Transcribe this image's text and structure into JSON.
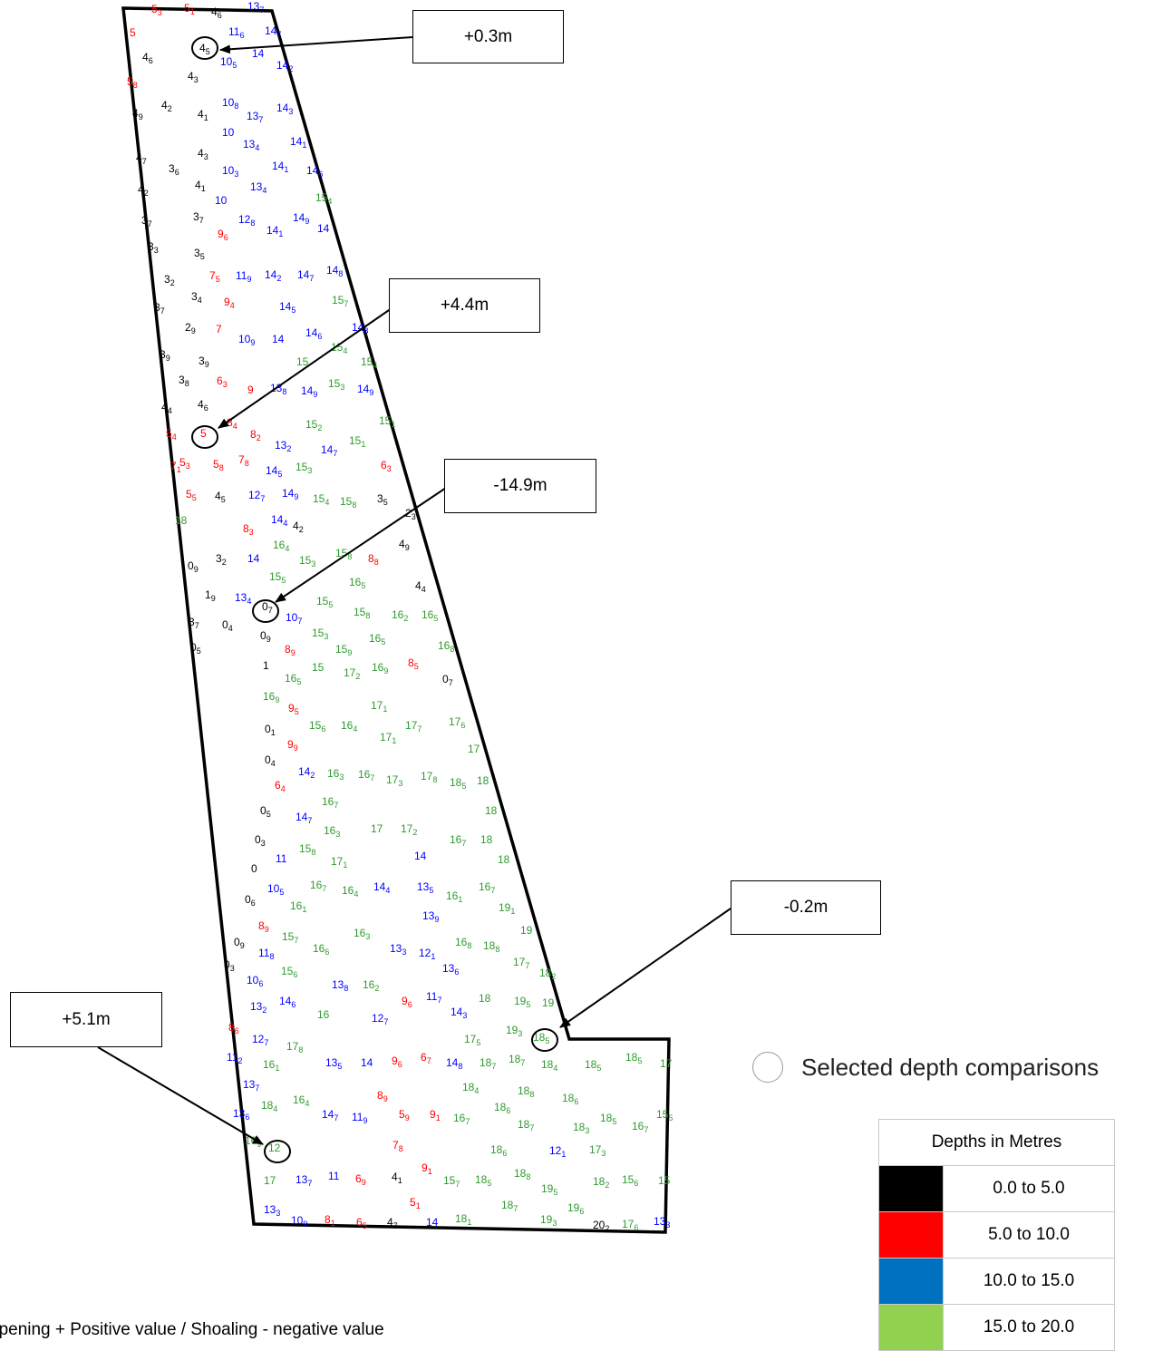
{
  "map": {
    "callouts": [
      "+0.3m",
      "+4.4m",
      "-14.9m",
      "-0.2m",
      "+5.1m"
    ],
    "selected_legend_label": "Selected depth comparisons",
    "footnote": "epening + Positive value / Shoaling - negative value"
  },
  "legend": {
    "title": "Depths in Metres",
    "ranges": [
      {
        "label": "0.0 to 5.0",
        "color": "#000000"
      },
      {
        "label": "5.0 to 10.0",
        "color": "#ff0000"
      },
      {
        "label": "10.0 to 15.0",
        "color": "#0070c0"
      },
      {
        "label": "15.0 to 20.0",
        "color": "#92d050"
      }
    ]
  },
  "soundings": [
    {
      "v": "5",
      "s": "3",
      "c": "r"
    },
    {
      "v": "5",
      "s": "1",
      "c": "r"
    },
    {
      "v": "4",
      "s": "6",
      "c": "k"
    },
    {
      "v": "13",
      "s": "7",
      "c": "b"
    },
    {
      "v": "5",
      "s": "",
      "c": "r"
    },
    {
      "v": "11",
      "s": "6",
      "c": "b"
    },
    {
      "v": "14",
      "s": "7",
      "c": "b"
    },
    {
      "v": "4",
      "s": "5",
      "c": "k"
    },
    {
      "v": "10",
      "s": "5",
      "c": "b"
    },
    {
      "v": "14",
      "s": "",
      "c": "b"
    },
    {
      "v": "14",
      "s": "2",
      "c": "b"
    },
    {
      "v": "4",
      "s": "6",
      "c": "k"
    },
    {
      "v": "4",
      "s": "3",
      "c": "k"
    },
    {
      "v": "5",
      "s": "8",
      "c": "r"
    },
    {
      "v": "4",
      "s": "2",
      "c": "k"
    },
    {
      "v": "4",
      "s": "1",
      "c": "k"
    },
    {
      "v": "10",
      "s": "8",
      "c": "b"
    },
    {
      "v": "13",
      "s": "7",
      "c": "b"
    },
    {
      "v": "14",
      "s": "3",
      "c": "b"
    },
    {
      "v": "4",
      "s": "9",
      "c": "k"
    },
    {
      "v": "10",
      "s": "",
      "c": "b"
    },
    {
      "v": "13",
      "s": "4",
      "c": "b"
    },
    {
      "v": "14",
      "s": "1",
      "c": "b"
    },
    {
      "v": "4",
      "s": "3",
      "c": "k"
    },
    {
      "v": "4",
      "s": "7",
      "c": "k"
    },
    {
      "v": "3",
      "s": "6",
      "c": "k"
    },
    {
      "v": "10",
      "s": "3",
      "c": "b"
    },
    {
      "v": "14",
      "s": "1",
      "c": "b"
    },
    {
      "v": "14",
      "s": "6",
      "c": "b"
    },
    {
      "v": "4",
      "s": "1",
      "c": "k"
    },
    {
      "v": "13",
      "s": "4",
      "c": "b"
    },
    {
      "v": "4",
      "s": "2",
      "c": "k"
    },
    {
      "v": "10",
      "s": "",
      "c": "b"
    },
    {
      "v": "15",
      "s": "4",
      "c": "g"
    },
    {
      "v": "3",
      "s": "7",
      "c": "k"
    },
    {
      "v": "12",
      "s": "8",
      "c": "b"
    },
    {
      "v": "14",
      "s": "9",
      "c": "b"
    },
    {
      "v": "14",
      "s": "1",
      "c": "b"
    },
    {
      "v": "14",
      "s": "",
      "c": "b"
    },
    {
      "v": "3",
      "s": "7",
      "c": "k"
    },
    {
      "v": "9",
      "s": "6",
      "c": "r"
    },
    {
      "v": "3",
      "s": "3",
      "c": "k"
    },
    {
      "v": "3",
      "s": "5",
      "c": "k"
    },
    {
      "v": "3",
      "s": "2",
      "c": "k"
    },
    {
      "v": "7",
      "s": "5",
      "c": "r"
    },
    {
      "v": "11",
      "s": "9",
      "c": "b"
    },
    {
      "v": "14",
      "s": "2",
      "c": "b"
    },
    {
      "v": "14",
      "s": "7",
      "c": "b"
    },
    {
      "v": "14",
      "s": "8",
      "c": "b"
    },
    {
      "v": "3",
      "s": "4",
      "c": "k"
    },
    {
      "v": "9",
      "s": "4",
      "c": "r"
    },
    {
      "v": "14",
      "s": "5",
      "c": "b"
    },
    {
      "v": "15",
      "s": "7",
      "c": "g"
    },
    {
      "v": "3",
      "s": "7",
      "c": "k"
    },
    {
      "v": "2",
      "s": "9",
      "c": "k"
    },
    {
      "v": "7",
      "s": "",
      "c": "r"
    },
    {
      "v": "10",
      "s": "9",
      "c": "b"
    },
    {
      "v": "14",
      "s": "",
      "c": "b"
    },
    {
      "v": "14",
      "s": "6",
      "c": "b"
    },
    {
      "v": "14",
      "s": "8",
      "c": "b"
    },
    {
      "v": "3",
      "s": "9",
      "c": "k"
    },
    {
      "v": "3",
      "s": "9",
      "c": "k"
    },
    {
      "v": "15",
      "s": "",
      "c": "g"
    },
    {
      "v": "15",
      "s": "4",
      "c": "g"
    },
    {
      "v": "15",
      "s": "4",
      "c": "g"
    },
    {
      "v": "3",
      "s": "8",
      "c": "k"
    },
    {
      "v": "6",
      "s": "3",
      "c": "r"
    },
    {
      "v": "9",
      "s": "",
      "c": "r"
    },
    {
      "v": "13",
      "s": "8",
      "c": "b"
    },
    {
      "v": "14",
      "s": "9",
      "c": "b"
    },
    {
      "v": "15",
      "s": "3",
      "c": "g"
    },
    {
      "v": "14",
      "s": "9",
      "c": "b"
    },
    {
      "v": "4",
      "s": "6",
      "c": "k"
    },
    {
      "v": "4",
      "s": "4",
      "c": "k"
    },
    {
      "v": "5",
      "s": "",
      "c": "r"
    },
    {
      "v": "8",
      "s": "4",
      "c": "r"
    },
    {
      "v": "15",
      "s": "2",
      "c": "g"
    },
    {
      "v": "15",
      "s": "1",
      "c": "g"
    },
    {
      "v": "5",
      "s": "4",
      "c": "r"
    },
    {
      "v": "8",
      "s": "2",
      "c": "r"
    },
    {
      "v": "13",
      "s": "2",
      "c": "b"
    },
    {
      "v": "14",
      "s": "7",
      "c": "b"
    },
    {
      "v": "15",
      "s": "1",
      "c": "g"
    },
    {
      "v": "5",
      "s": "3",
      "c": "r"
    },
    {
      "v": "5",
      "s": "8",
      "c": "r"
    },
    {
      "v": "7",
      "s": "8",
      "c": "r"
    },
    {
      "v": "14",
      "s": "5",
      "c": "b"
    },
    {
      "v": "15",
      "s": "3",
      "c": "g"
    },
    {
      "v": "6",
      "s": "3",
      "c": "r"
    },
    {
      "v": "7",
      "s": "1",
      "c": "r"
    },
    {
      "v": "5",
      "s": "5",
      "c": "r"
    },
    {
      "v": "4",
      "s": "5",
      "c": "k"
    },
    {
      "v": "12",
      "s": "7",
      "c": "b"
    },
    {
      "v": "14",
      "s": "9",
      "c": "b"
    },
    {
      "v": "15",
      "s": "4",
      "c": "g"
    },
    {
      "v": "15",
      "s": "8",
      "c": "g"
    },
    {
      "v": "3",
      "s": "5",
      "c": "k"
    },
    {
      "v": "14",
      "s": "4",
      "c": "b"
    },
    {
      "v": "4",
      "s": "2",
      "c": "k"
    },
    {
      "v": "8",
      "s": "3",
      "c": "r"
    },
    {
      "v": "18",
      "s": "",
      "c": "g"
    },
    {
      "v": "2",
      "s": "3",
      "c": "k"
    },
    {
      "v": "16",
      "s": "4",
      "c": "g"
    },
    {
      "v": "4",
      "s": "9",
      "c": "k"
    },
    {
      "v": "3",
      "s": "2",
      "c": "k"
    },
    {
      "v": "14",
      "s": "",
      "c": "b"
    },
    {
      "v": "15",
      "s": "3",
      "c": "g"
    },
    {
      "v": "15",
      "s": "8",
      "c": "g"
    },
    {
      "v": "8",
      "s": "8",
      "c": "r"
    },
    {
      "v": "0",
      "s": "9",
      "c": "k"
    },
    {
      "v": "15",
      "s": "5",
      "c": "g"
    },
    {
      "v": "16",
      "s": "5",
      "c": "g"
    },
    {
      "v": "4",
      "s": "4",
      "c": "k"
    },
    {
      "v": "1",
      "s": "9",
      "c": "k"
    },
    {
      "v": "13",
      "s": "4",
      "c": "b"
    },
    {
      "v": "0",
      "s": "7",
      "c": "k"
    },
    {
      "v": "15",
      "s": "5",
      "c": "g"
    },
    {
      "v": "15",
      "s": "8",
      "c": "g"
    },
    {
      "v": "16",
      "s": "2",
      "c": "g"
    },
    {
      "v": "16",
      "s": "5",
      "c": "g"
    },
    {
      "v": "3",
      "s": "7",
      "c": "k"
    },
    {
      "v": "0",
      "s": "4",
      "c": "k"
    },
    {
      "v": "10",
      "s": "7",
      "c": "b"
    },
    {
      "v": "0",
      "s": "9",
      "c": "k"
    },
    {
      "v": "15",
      "s": "3",
      "c": "g"
    },
    {
      "v": "16",
      "s": "5",
      "c": "g"
    },
    {
      "v": "0",
      "s": "5",
      "c": "k"
    },
    {
      "v": "8",
      "s": "9",
      "c": "r"
    },
    {
      "v": "15",
      "s": "9",
      "c": "g"
    },
    {
      "v": "16",
      "s": "8",
      "c": "g"
    },
    {
      "v": "1",
      "s": "",
      "c": "k"
    },
    {
      "v": "15",
      "s": "",
      "c": "g"
    },
    {
      "v": "17",
      "s": "2",
      "c": "g"
    },
    {
      "v": "16",
      "s": "9",
      "c": "g"
    },
    {
      "v": "8",
      "s": "5",
      "c": "r"
    },
    {
      "v": "16",
      "s": "5",
      "c": "g"
    },
    {
      "v": "17",
      "s": "1",
      "c": "g"
    },
    {
      "v": "0",
      "s": "7",
      "c": "k"
    },
    {
      "v": "16",
      "s": "9",
      "c": "g"
    },
    {
      "v": "9",
      "s": "5",
      "c": "r"
    },
    {
      "v": "0",
      "s": "1",
      "c": "k"
    },
    {
      "v": "15",
      "s": "6",
      "c": "g"
    },
    {
      "v": "16",
      "s": "4",
      "c": "g"
    },
    {
      "v": "17",
      "s": "7",
      "c": "g"
    },
    {
      "v": "17",
      "s": "6",
      "c": "g"
    },
    {
      "v": "17",
      "s": "1",
      "c": "g"
    },
    {
      "v": "9",
      "s": "9",
      "c": "r"
    },
    {
      "v": "17",
      "s": "",
      "c": "g"
    },
    {
      "v": "0",
      "s": "4",
      "c": "k"
    },
    {
      "v": "14",
      "s": "2",
      "c": "b"
    },
    {
      "v": "16",
      "s": "3",
      "c": "g"
    },
    {
      "v": "16",
      "s": "7",
      "c": "g"
    },
    {
      "v": "17",
      "s": "3",
      "c": "g"
    },
    {
      "v": "17",
      "s": "8",
      "c": "g"
    },
    {
      "v": "18",
      "s": "5",
      "c": "g"
    },
    {
      "v": "18",
      "s": "",
      "c": "g"
    },
    {
      "v": "6",
      "s": "4",
      "c": "r"
    },
    {
      "v": "16",
      "s": "7",
      "c": "g"
    },
    {
      "v": "18",
      "s": "",
      "c": "g"
    },
    {
      "v": "0",
      "s": "5",
      "c": "k"
    },
    {
      "v": "14",
      "s": "7",
      "c": "b"
    },
    {
      "v": "16",
      "s": "3",
      "c": "g"
    },
    {
      "v": "17",
      "s": "",
      "c": "g"
    },
    {
      "v": "17",
      "s": "2",
      "c": "g"
    },
    {
      "v": "0",
      "s": "3",
      "c": "k"
    },
    {
      "v": "15",
      "s": "8",
      "c": "g"
    },
    {
      "v": "16",
      "s": "7",
      "c": "g"
    },
    {
      "v": "18",
      "s": "",
      "c": "g"
    },
    {
      "v": "11",
      "s": "",
      "c": "b"
    },
    {
      "v": "17",
      "s": "1",
      "c": "g"
    },
    {
      "v": "14",
      "s": "",
      "c": "b"
    },
    {
      "v": "18",
      "s": "",
      "c": "g"
    },
    {
      "v": "0",
      "s": "",
      "c": "k"
    },
    {
      "v": "10",
      "s": "5",
      "c": "b"
    },
    {
      "v": "16",
      "s": "7",
      "c": "g"
    },
    {
      "v": "16",
      "s": "4",
      "c": "g"
    },
    {
      "v": "14",
      "s": "4",
      "c": "b"
    },
    {
      "v": "13",
      "s": "5",
      "c": "b"
    },
    {
      "v": "16",
      "s": "1",
      "c": "g"
    },
    {
      "v": "16",
      "s": "7",
      "c": "g"
    },
    {
      "v": "0",
      "s": "6",
      "c": "k"
    },
    {
      "v": "16",
      "s": "1",
      "c": "g"
    },
    {
      "v": "19",
      "s": "1",
      "c": "g"
    },
    {
      "v": "13",
      "s": "9",
      "c": "b"
    },
    {
      "v": "8",
      "s": "9",
      "c": "r"
    },
    {
      "v": "15",
      "s": "7",
      "c": "g"
    },
    {
      "v": "16",
      "s": "3",
      "c": "g"
    },
    {
      "v": "19",
      "s": "",
      "c": "g"
    },
    {
      "v": "0",
      "s": "9",
      "c": "k"
    },
    {
      "v": "16",
      "s": "6",
      "c": "g"
    },
    {
      "v": "13",
      "s": "3",
      "c": "b"
    },
    {
      "v": "12",
      "s": "1",
      "c": "b"
    },
    {
      "v": "16",
      "s": "8",
      "c": "g"
    },
    {
      "v": "18",
      "s": "8",
      "c": "g"
    },
    {
      "v": "11",
      "s": "8",
      "c": "b"
    },
    {
      "v": "17",
      "s": "7",
      "c": "g"
    },
    {
      "v": "15",
      "s": "6",
      "c": "g"
    },
    {
      "v": "13",
      "s": "6",
      "c": "b"
    },
    {
      "v": "18",
      "s": "2",
      "c": "g"
    },
    {
      "v": "0",
      "s": "3",
      "c": "k"
    },
    {
      "v": "10",
      "s": "6",
      "c": "b"
    },
    {
      "v": "13",
      "s": "8",
      "c": "b"
    },
    {
      "v": "16",
      "s": "2",
      "c": "g"
    },
    {
      "v": "14",
      "s": "6",
      "c": "b"
    },
    {
      "v": "11",
      "s": "7",
      "c": "b"
    },
    {
      "v": "18",
      "s": "",
      "c": "g"
    },
    {
      "v": "19",
      "s": "5",
      "c": "g"
    },
    {
      "v": "19",
      "s": "",
      "c": "g"
    },
    {
      "v": "13",
      "s": "2",
      "c": "b"
    },
    {
      "v": "9",
      "s": "6",
      "c": "r"
    },
    {
      "v": "14",
      "s": "3",
      "c": "b"
    },
    {
      "v": "16",
      "s": "",
      "c": "g"
    },
    {
      "v": "12",
      "s": "7",
      "c": "b"
    },
    {
      "v": "19",
      "s": "3",
      "c": "g"
    },
    {
      "v": "18",
      "s": "5",
      "c": "g"
    },
    {
      "v": "8",
      "s": "6",
      "c": "r"
    },
    {
      "v": "12",
      "s": "7",
      "c": "b"
    },
    {
      "v": "17",
      "s": "8",
      "c": "g"
    },
    {
      "v": "17",
      "s": "5",
      "c": "g"
    },
    {
      "v": "11",
      "s": "2",
      "c": "b"
    },
    {
      "v": "16",
      "s": "1",
      "c": "g"
    },
    {
      "v": "13",
      "s": "5",
      "c": "b"
    },
    {
      "v": "14",
      "s": "",
      "c": "b"
    },
    {
      "v": "9",
      "s": "6",
      "c": "r"
    },
    {
      "v": "6",
      "s": "7",
      "c": "r"
    },
    {
      "v": "14",
      "s": "8",
      "c": "b"
    },
    {
      "v": "18",
      "s": "7",
      "c": "g"
    },
    {
      "v": "18",
      "s": "7",
      "c": "g"
    },
    {
      "v": "18",
      "s": "4",
      "c": "g"
    },
    {
      "v": "18",
      "s": "5",
      "c": "g"
    },
    {
      "v": "18",
      "s": "5",
      "c": "g"
    },
    {
      "v": "17",
      "s": "",
      "c": "g"
    },
    {
      "v": "13",
      "s": "7",
      "c": "b"
    },
    {
      "v": "18",
      "s": "4",
      "c": "g"
    },
    {
      "v": "18",
      "s": "8",
      "c": "g"
    },
    {
      "v": "8",
      "s": "9",
      "c": "r"
    },
    {
      "v": "18",
      "s": "6",
      "c": "g"
    },
    {
      "v": "18",
      "s": "4",
      "c": "g"
    },
    {
      "v": "16",
      "s": "4",
      "c": "g"
    },
    {
      "v": "18",
      "s": "6",
      "c": "g"
    },
    {
      "v": "13",
      "s": "6",
      "c": "b"
    },
    {
      "v": "14",
      "s": "7",
      "c": "b"
    },
    {
      "v": "11",
      "s": "9",
      "c": "b"
    },
    {
      "v": "5",
      "s": "9",
      "c": "r"
    },
    {
      "v": "9",
      "s": "1",
      "c": "r"
    },
    {
      "v": "16",
      "s": "7",
      "c": "g"
    },
    {
      "v": "18",
      "s": "7",
      "c": "g"
    },
    {
      "v": "18",
      "s": "3",
      "c": "g"
    },
    {
      "v": "18",
      "s": "5",
      "c": "g"
    },
    {
      "v": "16",
      "s": "7",
      "c": "g"
    },
    {
      "v": "15",
      "s": "5",
      "c": "g"
    },
    {
      "v": "16",
      "s": "9",
      "c": "g"
    },
    {
      "v": "12",
      "s": "",
      "c": "g"
    },
    {
      "v": "7",
      "s": "8",
      "c": "r"
    },
    {
      "v": "18",
      "s": "6",
      "c": "g"
    },
    {
      "v": "12",
      "s": "1",
      "c": "b"
    },
    {
      "v": "17",
      "s": "3",
      "c": "g"
    },
    {
      "v": "17",
      "s": "",
      "c": "g"
    },
    {
      "v": "13",
      "s": "7",
      "c": "b"
    },
    {
      "v": "11",
      "s": "",
      "c": "b"
    },
    {
      "v": "6",
      "s": "9",
      "c": "r"
    },
    {
      "v": "4",
      "s": "1",
      "c": "k"
    },
    {
      "v": "9",
      "s": "1",
      "c": "r"
    },
    {
      "v": "15",
      "s": "7",
      "c": "g"
    },
    {
      "v": "18",
      "s": "5",
      "c": "g"
    },
    {
      "v": "18",
      "s": "8",
      "c": "g"
    },
    {
      "v": "19",
      "s": "5",
      "c": "g"
    },
    {
      "v": "18",
      "s": "2",
      "c": "g"
    },
    {
      "v": "15",
      "s": "6",
      "c": "g"
    },
    {
      "v": "15",
      "s": "",
      "c": "g"
    },
    {
      "v": "5",
      "s": "1",
      "c": "r"
    },
    {
      "v": "18",
      "s": "7",
      "c": "g"
    },
    {
      "v": "19",
      "s": "6",
      "c": "g"
    },
    {
      "v": "13",
      "s": "3",
      "c": "b"
    },
    {
      "v": "10",
      "s": "9",
      "c": "b"
    },
    {
      "v": "8",
      "s": "1",
      "c": "r"
    },
    {
      "v": "6",
      "s": "5",
      "c": "r"
    },
    {
      "v": "4",
      "s": "7",
      "c": "k"
    },
    {
      "v": "14",
      "s": "",
      "c": "b"
    },
    {
      "v": "18",
      "s": "1",
      "c": "g"
    },
    {
      "v": "19",
      "s": "3",
      "c": "g"
    },
    {
      "v": "20",
      "s": "2",
      "c": "k"
    },
    {
      "v": "17",
      "s": "6",
      "c": "g"
    },
    {
      "v": "13",
      "s": "3",
      "c": "b"
    }
  ]
}
